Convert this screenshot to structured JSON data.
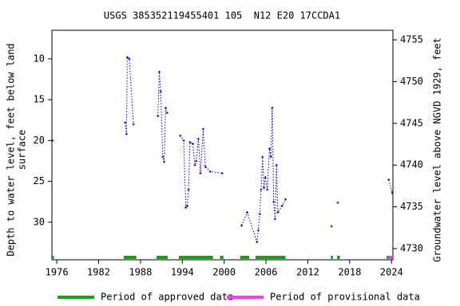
{
  "chart_data": {
    "type": "line",
    "title": "USGS 385352119455401 105  N12 E20 17CCDA1",
    "y_label": [
      "Depth to water level, feet below land",
      "surface"
    ],
    "y2_label": "Groundwater level above NGVD 1929, feet",
    "xlim": [
      1975.3,
      2024.2
    ],
    "xticks": [
      1976,
      1982,
      1988,
      1994,
      2000,
      2006,
      2012,
      2018,
      2024
    ],
    "ylim": [
      6.5,
      34.6
    ],
    "y_inverted": true,
    "yticks": [
      10,
      15,
      20,
      25,
      30
    ],
    "y2lim": [
      4728.66,
      4756.15
    ],
    "y2ticks": [
      4730,
      4735,
      4740,
      4745,
      4750,
      4755
    ],
    "series": [
      {
        "color": "#0000cc",
        "x": [
          1975.4,
          1980,
          1985.8,
          1986.0,
          1986.1,
          1986.4,
          1987.0,
          1989,
          1990.5,
          1990.7,
          1990.9,
          1991.2,
          1991.4,
          1991.6,
          1991.8,
          1992.5,
          1993.7,
          1994.2,
          1994.5,
          1994.7,
          1994.9,
          1995.1,
          1995.5,
          1995.8,
          1996.0,
          1996.3,
          1996.6,
          1997.0,
          1997.3,
          1998.0,
          1999.7,
          2001,
          2002.5,
          2003.3,
          2004.7,
          2004.9,
          2005.1,
          2005.3,
          2005.5,
          2005.7,
          2005.9,
          2006.2,
          2006.5,
          2006.7,
          2006.9,
          2007.1,
          2007.3,
          2007.5,
          2007.7,
          2008.3,
          2008.8,
          2012,
          2015.4,
          2016.0,
          2016.3,
          2020,
          2023.6,
          2024.1
        ],
        "values": [
          20.0,
          null,
          17.8,
          19.2,
          9.8,
          10.0,
          18.0,
          null,
          17.0,
          11.6,
          14.0,
          22.0,
          22.6,
          16.0,
          16.6,
          null,
          19.4,
          20.0,
          28.2,
          28.0,
          26.0,
          20.2,
          20.4,
          23.0,
          22.5,
          19.8,
          24.0,
          18.6,
          23.2,
          23.8,
          24.0,
          null,
          30.4,
          28.8,
          32.4,
          31.0,
          29.0,
          26.0,
          22.0,
          25.8,
          24.5,
          26.0,
          21.0,
          22.0,
          16.0,
          27.5,
          29.6,
          23.0,
          28.8,
          28.0,
          27.2,
          null,
          30.5,
          null,
          27.6,
          null,
          24.8,
          26.4
        ]
      }
    ],
    "periods": [
      {
        "name": "Period of approved data",
        "color": "#1a9e1a",
        "ranges": [
          [
            1975.3,
            1975.6
          ],
          [
            1985.6,
            1987.4
          ],
          [
            1990.3,
            1991.9
          ],
          [
            1993.5,
            1998.4
          ],
          [
            1999.4,
            1999.9
          ],
          [
            2002.3,
            2003.6
          ],
          [
            2004.5,
            2008.8
          ],
          [
            2015.3,
            2015.6
          ],
          [
            2016.2,
            2016.6
          ],
          [
            2023.3,
            2023.6
          ]
        ]
      },
      {
        "name": "Period of provisional data",
        "color": "#ee44ee",
        "ranges": [
          [
            2023.6,
            2024.2
          ]
        ]
      }
    ]
  }
}
